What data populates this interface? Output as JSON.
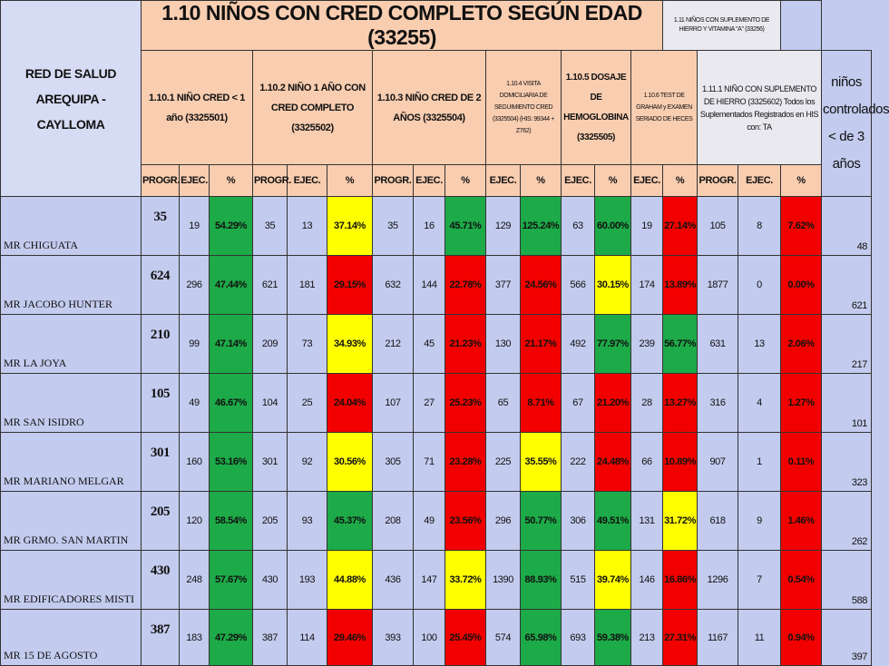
{
  "header": {
    "network": "RED DE SALUD AREQUIPA - CAYLLOMA",
    "title": "1.10 NIÑOS CON CRED COMPLETO SEGÚN EDAD (33255)",
    "supplement_title": "1.11 NIÑOS CON SUPLEMENTO DE HIERRO Y VITAMINA \"A\" (33256)",
    "groups": [
      {
        "label": "1.10.1 NIÑO CRED < 1 año (3325501)",
        "span": 3
      },
      {
        "label": "1.10.2 NIÑO 1 AÑO CON CRED COMPLETO (3325502)",
        "span": 3
      },
      {
        "label": "1.10.3 NIÑO CRED DE 2 AÑOS (3325504)",
        "span": 3
      },
      {
        "label": "1.10.4 VISITA DOMICILIARIA DE SEGUIMIENTO CRED (3325504) (HIS: 99344 + Z762)",
        "span": 2
      },
      {
        "label": "1.10.5 DOSAJE DE HEMOGLOBINA (3325505)",
        "span": 2
      },
      {
        "label": "1.10.6 TEST DE GRAHAM y EXAMEN SERIADO DE HECES",
        "span": 2
      },
      {
        "label": "1.11.1 NIÑO CON SUPLEMENTO DE HIERRO (3325602) Todos los Suplementados Registrados en HIS con: TA",
        "span": 3
      }
    ],
    "last_column": "niños controlados < de 3 años",
    "subheaders": [
      "PROGR.",
      "EJEC.",
      "%",
      "PROGR.",
      "EJEC.",
      "%",
      "PROGR.",
      "EJEC.",
      "%",
      "EJEC.",
      "%",
      "EJEC.",
      "%",
      "EJEC.",
      "%",
      "PROGR.",
      "EJEC.",
      "%"
    ]
  },
  "table": {
    "rows": [
      {
        "name": "MR CHIGUATA",
        "cells": [
          35,
          19,
          "54.29%",
          35,
          13,
          "37.14%",
          35,
          16,
          "45.71%",
          129,
          "125.24%",
          63,
          "60.00%",
          19,
          "27.14%",
          105,
          8,
          "7.62%"
        ],
        "total": 48
      },
      {
        "name": "MR JACOBO HUNTER",
        "cells": [
          624,
          296,
          "47.44%",
          621,
          181,
          "29.15%",
          632,
          144,
          "22.78%",
          377,
          "24.56%",
          566,
          "30.15%",
          174,
          "13.89%",
          1877,
          0,
          "0.00%"
        ],
        "total": 621
      },
      {
        "name": "MR LA JOYA",
        "cells": [
          210,
          99,
          "47.14%",
          209,
          73,
          "34.93%",
          212,
          45,
          "21.23%",
          130,
          "21.17%",
          492,
          "77.97%",
          239,
          "56.77%",
          631,
          13,
          "2.06%"
        ],
        "total": 217
      },
      {
        "name": "MR SAN ISIDRO",
        "cells": [
          105,
          49,
          "46.67%",
          104,
          25,
          "24.04%",
          107,
          27,
          "25.23%",
          65,
          "8.71%",
          67,
          "21.20%",
          28,
          "13.27%",
          316,
          4,
          "1.27%"
        ],
        "total": 101
      },
      {
        "name": "MR MARIANO MELGAR",
        "cells": [
          301,
          160,
          "53.16%",
          301,
          92,
          "30.56%",
          305,
          71,
          "23.28%",
          225,
          "35.55%",
          222,
          "24.48%",
          66,
          "10.89%",
          907,
          1,
          "0.11%"
        ],
        "total": 323
      },
      {
        "name": "MR GRMO. SAN MARTIN",
        "cells": [
          205,
          120,
          "58.54%",
          205,
          93,
          "45.37%",
          208,
          49,
          "23.56%",
          296,
          "50.77%",
          306,
          "49.51%",
          131,
          "31.72%",
          618,
          9,
          "1.46%"
        ],
        "total": 262
      },
      {
        "name": "MR EDIFICADORES MISTI",
        "cells": [
          430,
          248,
          "57.67%",
          430,
          193,
          "44.88%",
          436,
          147,
          "33.72%",
          1390,
          "88.93%",
          515,
          "39.74%",
          146,
          "16.86%",
          1296,
          7,
          "0.54%"
        ],
        "total": 588
      },
      {
        "name": "MR 15 DE AGOSTO",
        "cells": [
          387,
          183,
          "47.29%",
          387,
          114,
          "29.46%",
          393,
          100,
          "25.45%",
          574,
          "65.98%",
          693,
          "59.38%",
          213,
          "27.31%",
          1167,
          11,
          "0.94%"
        ],
        "total": 397
      }
    ]
  }
}
